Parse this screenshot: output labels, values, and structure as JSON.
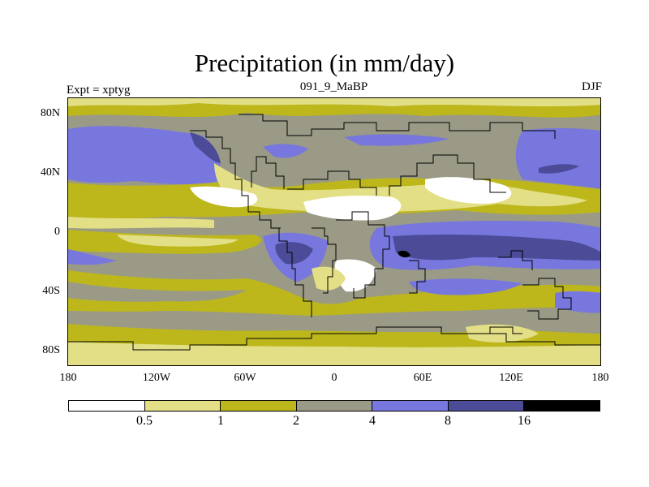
{
  "title": "Precipitation (in mm/day)",
  "subtitle_left": "Expt = xptyg",
  "subtitle_center": "091_9_MaBP",
  "subtitle_right": "DJF",
  "y_ticks": [
    "80N",
    "40N",
    "0",
    "40S",
    "80S"
  ],
  "x_ticks": [
    "180",
    "120W",
    "60W",
    "0",
    "60E",
    "120E",
    "180"
  ],
  "colorbar": {
    "colors": [
      "#ffffff",
      "#e3df86",
      "#bdb71c",
      "#9a9a86",
      "#7777de",
      "#4b4b97",
      "#000000"
    ],
    "labels": [
      "0.5",
      "1",
      "2",
      "4",
      "8",
      "16"
    ]
  },
  "map": {
    "units": "mm/day",
    "season": "DJF",
    "lon_range": [
      -180,
      180
    ],
    "lat_range": [
      -90,
      90
    ]
  }
}
